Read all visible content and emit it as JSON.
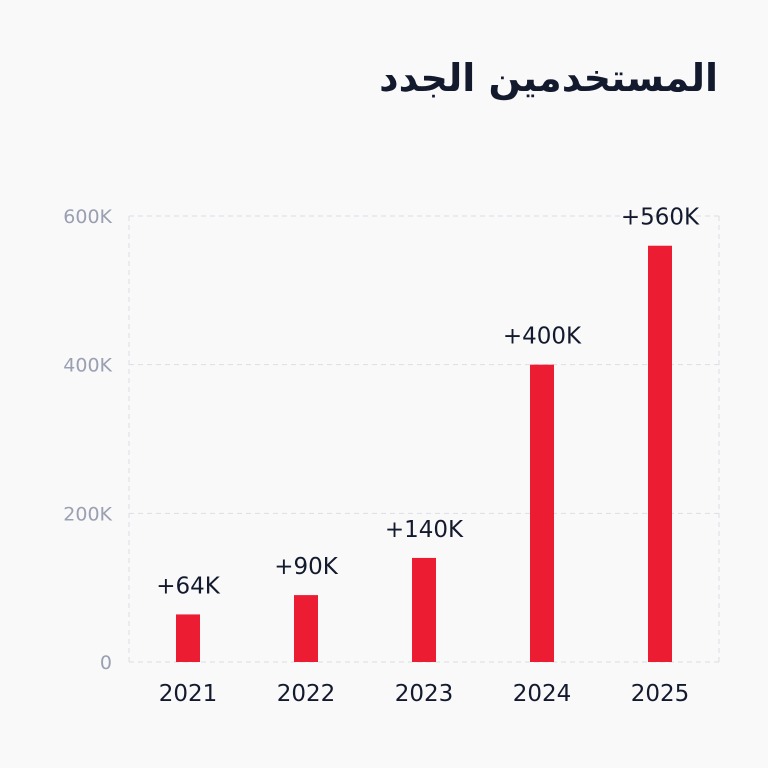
{
  "title": "المستخدمين الجدد",
  "chart_data": {
    "type": "bar",
    "categories": [
      "2021",
      "2022",
      "2023",
      "2024",
      "2025"
    ],
    "values": [
      64000,
      90000,
      140000,
      400000,
      560000
    ],
    "data_labels": [
      "+64K",
      "+90K",
      "+140K",
      "+400K",
      "+560K"
    ],
    "y_ticks": [
      0,
      200000,
      400000,
      600000
    ],
    "y_tick_labels": [
      "0",
      "200K",
      "400K",
      "600K"
    ],
    "ylim": [
      0,
      600000
    ],
    "grid": true,
    "bar_color": "#ec1c33"
  }
}
